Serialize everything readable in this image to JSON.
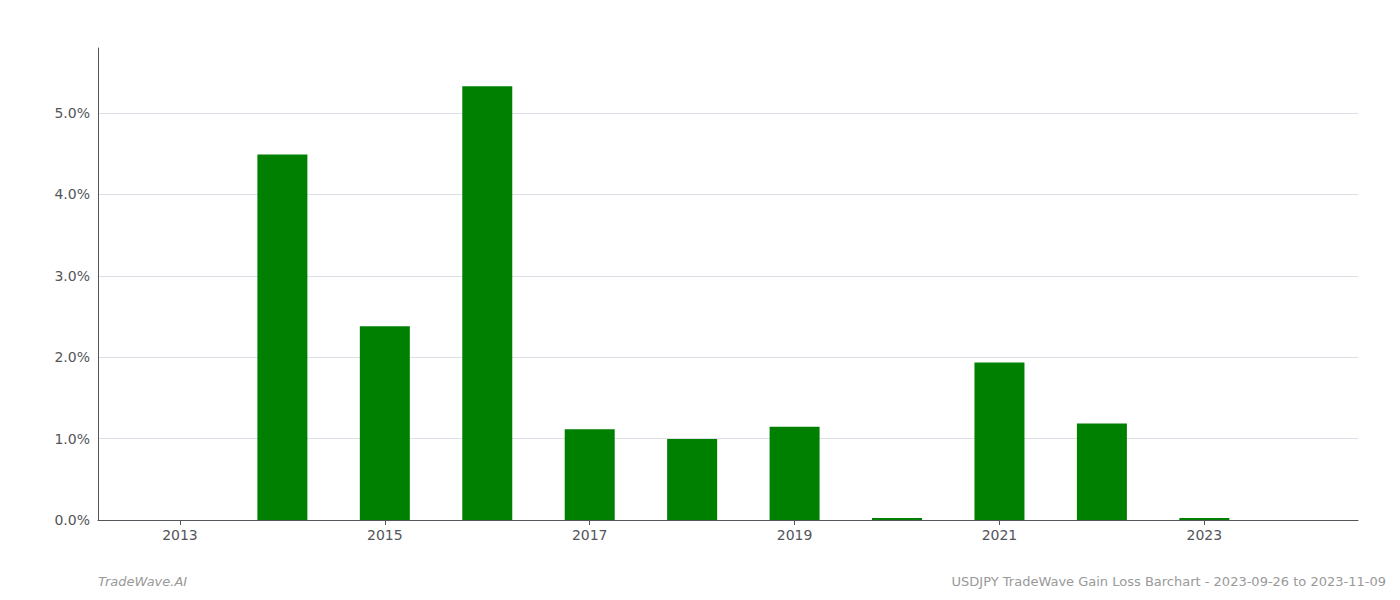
{
  "chart_data": {
    "type": "bar",
    "x": [
      2014,
      2015,
      2016,
      2017,
      2018,
      2019,
      2020,
      2021,
      2022,
      2023
    ],
    "values": [
      0.0449,
      0.0238,
      0.0533,
      0.01115,
      0.00995,
      0.01145,
      0.00025,
      0.01935,
      0.01185,
      0.00025
    ],
    "color": "#008000",
    "xlim": [
      2012.2,
      2024.5
    ],
    "xticks": [
      2013,
      2015,
      2017,
      2019,
      2021,
      2023
    ],
    "ylim": [
      0,
      0.058
    ],
    "yticks": [
      {
        "value": 0.0,
        "label": "0.0%"
      },
      {
        "value": 0.01,
        "label": "1.0%"
      },
      {
        "value": 0.02,
        "label": "2.0%"
      },
      {
        "value": 0.03,
        "label": "3.0%"
      },
      {
        "value": 0.04,
        "label": "4.0%"
      },
      {
        "value": 0.05,
        "label": "5.0%"
      }
    ],
    "grid": true,
    "annotations": [
      "TradeWave.AI",
      "USDJPY TradeWave Gain Loss Barchart - 2023-09-26 to 2023-11-09"
    ]
  }
}
